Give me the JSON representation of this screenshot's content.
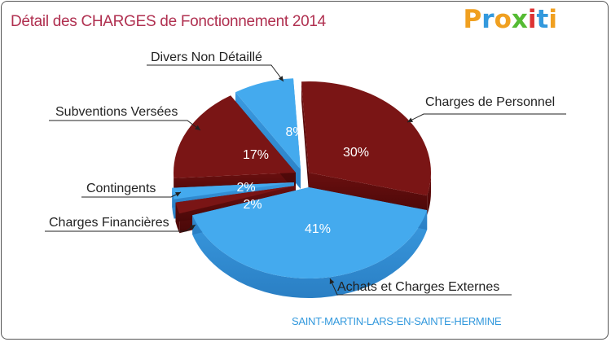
{
  "header": {
    "title": "Détail des CHARGES de Fonctionnement 2014",
    "logo": "Proxiti"
  },
  "footer": {
    "commune": "SAINT-MARTIN-LARS-EN-SAINTE-HERMINE"
  },
  "colors": {
    "title": "#b03050",
    "maroon": "#7a1515",
    "blue": "#44aaee",
    "commune": "#3399dd"
  },
  "chart_data": {
    "type": "pie",
    "title": "Détail des CHARGES de Fonctionnement 2014",
    "slices": [
      {
        "label": "Charges de Personnel",
        "value": 30,
        "display": "30%",
        "color": "#7a1515"
      },
      {
        "label": "Achats et Charges Externes",
        "value": 41,
        "display": "41%",
        "color": "#44aaee"
      },
      {
        "label": "Charges Financières",
        "value": 2,
        "display": "2%",
        "color": "#7a1515"
      },
      {
        "label": "Contingents",
        "value": 2,
        "display": "2%",
        "color": "#44aaee"
      },
      {
        "label": "Subventions Versées",
        "value": 17,
        "display": "17%",
        "color": "#7a1515"
      },
      {
        "label": "Divers Non Détaillé",
        "value": 8,
        "display": "8%",
        "color": "#44aaee"
      }
    ]
  }
}
